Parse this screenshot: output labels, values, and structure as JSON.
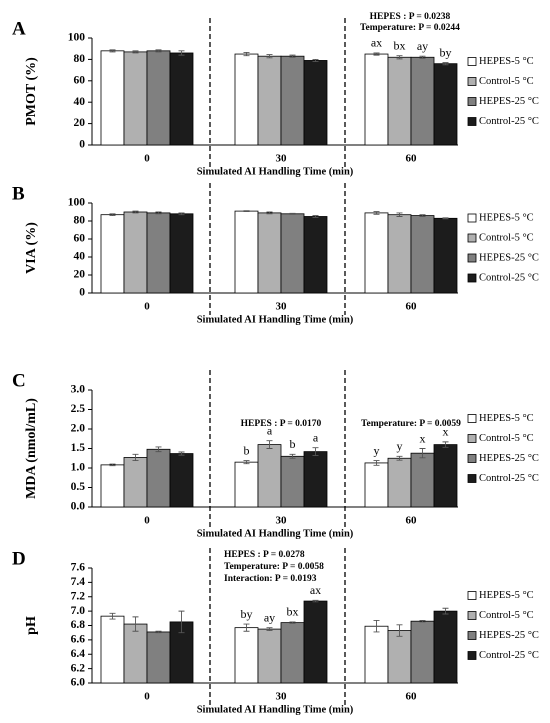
{
  "chart_data": [
    {
      "type": "bar",
      "panel_label": "A",
      "ylabel": "PMOT (%)",
      "xlabel": "Simulated AI Handling Time (min)",
      "categories": [
        "0",
        "30",
        "60"
      ],
      "series": [
        {
          "name": "HEPES-5 °C",
          "color": "#ffffff",
          "values": [
            88,
            85,
            85
          ],
          "errors": [
            1,
            1.5,
            1
          ],
          "letters": [
            null,
            null,
            "ax"
          ]
        },
        {
          "name": "Control-5 °C",
          "color": "#b0b0b0",
          "values": [
            87,
            83,
            82
          ],
          "errors": [
            1,
            1.5,
            1.5
          ],
          "letters": [
            null,
            null,
            "bx"
          ]
        },
        {
          "name": "HEPES-25 °C",
          "color": "#808080",
          "values": [
            88,
            83,
            82
          ],
          "errors": [
            1,
            1,
            1
          ],
          "letters": [
            null,
            null,
            "ay"
          ]
        },
        {
          "name": "Control-25 °C",
          "color": "#1c1c1c",
          "values": [
            86,
            79,
            76
          ],
          "errors": [
            2,
            1,
            1
          ],
          "letters": [
            null,
            null,
            "by"
          ]
        }
      ],
      "ylim": [
        0,
        100
      ],
      "yticks": [
        0,
        20,
        40,
        60,
        80,
        100
      ],
      "annotations": [
        "HEPES : P = 0.0238",
        "Temperature: P = 0.0244"
      ]
    },
    {
      "type": "bar",
      "panel_label": "B",
      "ylabel": "VIA (%)",
      "xlabel": "Simulated AI Handling Time (min)",
      "categories": [
        "0",
        "30",
        "60"
      ],
      "series": [
        {
          "name": "HEPES-5 °C",
          "color": "#ffffff",
          "values": [
            87,
            91,
            89
          ],
          "errors": [
            1,
            0.5,
            1.5
          ]
        },
        {
          "name": "Control-5 °C",
          "color": "#b0b0b0",
          "values": [
            90,
            89,
            87
          ],
          "errors": [
            1,
            1,
            2
          ]
        },
        {
          "name": "HEPES-25 °C",
          "color": "#808080",
          "values": [
            89,
            88,
            86
          ],
          "errors": [
            1,
            0.5,
            1
          ]
        },
        {
          "name": "Control-25 °C",
          "color": "#1c1c1c",
          "values": [
            88,
            85,
            83
          ],
          "errors": [
            1,
            1,
            0.5
          ]
        }
      ],
      "ylim": [
        0,
        100
      ],
      "yticks": [
        0,
        20,
        40,
        60,
        80,
        100
      ]
    },
    {
      "type": "bar",
      "panel_label": "C",
      "ylabel": "MDA (nmol/mL)",
      "xlabel": "Simulated AI Handling Time (min)",
      "categories": [
        "0",
        "30",
        "60"
      ],
      "series": [
        {
          "name": "HEPES-5 °C",
          "color": "#ffffff",
          "values": [
            1.08,
            1.15,
            1.13
          ],
          "errors": [
            0.02,
            0.04,
            0.06
          ],
          "letters": [
            null,
            "b",
            "y"
          ]
        },
        {
          "name": "Control-5 °C",
          "color": "#b0b0b0",
          "values": [
            1.27,
            1.6,
            1.25
          ],
          "errors": [
            0.08,
            0.1,
            0.05
          ],
          "letters": [
            null,
            "a",
            "y"
          ]
        },
        {
          "name": "HEPES-25 °C",
          "color": "#808080",
          "values": [
            1.48,
            1.3,
            1.38
          ],
          "errors": [
            0.06,
            0.05,
            0.12
          ],
          "letters": [
            null,
            "b",
            "x"
          ]
        },
        {
          "name": "Control-25 °C",
          "color": "#1c1c1c",
          "values": [
            1.37,
            1.42,
            1.6
          ],
          "errors": [
            0.04,
            0.1,
            0.07
          ],
          "letters": [
            null,
            "a",
            "x"
          ]
        }
      ],
      "ylim": [
        0,
        3
      ],
      "yticks": [
        {
          "value": 0,
          "label": "0.0"
        },
        0.5,
        {
          "value": 1,
          "label": "1.0"
        },
        1.5,
        {
          "value": 2,
          "label": "2.0"
        },
        2.5,
        {
          "value": 3,
          "label": "3.0"
        }
      ],
      "annotations": [
        "HEPES : P = 0.0170",
        "Temperature: P = 0.0059"
      ]
    },
    {
      "type": "bar",
      "panel_label": "D",
      "ylabel": "pH",
      "xlabel": "Simulated AI Handling Time (min)",
      "categories": [
        "0",
        "30",
        "60"
      ],
      "series": [
        {
          "name": "HEPES-5 °C",
          "color": "#ffffff",
          "values": [
            6.93,
            6.77,
            6.79
          ],
          "errors": [
            0.04,
            0.05,
            0.08
          ],
          "letters": [
            null,
            "by",
            null
          ]
        },
        {
          "name": "Control-5 °C",
          "color": "#b0b0b0",
          "values": [
            6.82,
            6.75,
            6.73
          ],
          "errors": [
            0.1,
            0.02,
            0.08
          ],
          "letters": [
            null,
            "ay",
            null
          ]
        },
        {
          "name": "HEPES-25 °C",
          "color": "#808080",
          "values": [
            6.71,
            6.84,
            6.86
          ],
          "errors": [
            0.01,
            0.01,
            0.01
          ],
          "letters": [
            null,
            "bx",
            null
          ]
        },
        {
          "name": "Control-25 °C",
          "color": "#1c1c1c",
          "values": [
            6.85,
            7.14,
            7.0
          ],
          "errors": [
            0.15,
            0.01,
            0.04
          ],
          "letters": [
            null,
            "ax",
            null
          ]
        }
      ],
      "ylim": [
        6,
        7.6
      ],
      "yticks": [
        {
          "value": 6,
          "label": "6.0"
        },
        6.2,
        6.4,
        6.6,
        6.8,
        {
          "value": 7,
          "label": "7.0"
        },
        7.2,
        7.4,
        7.6
      ],
      "annotations": [
        "HEPES : P = 0.0278",
        "Temperature: P = 0.0058",
        "Interaction: P = 0.0193"
      ]
    }
  ]
}
